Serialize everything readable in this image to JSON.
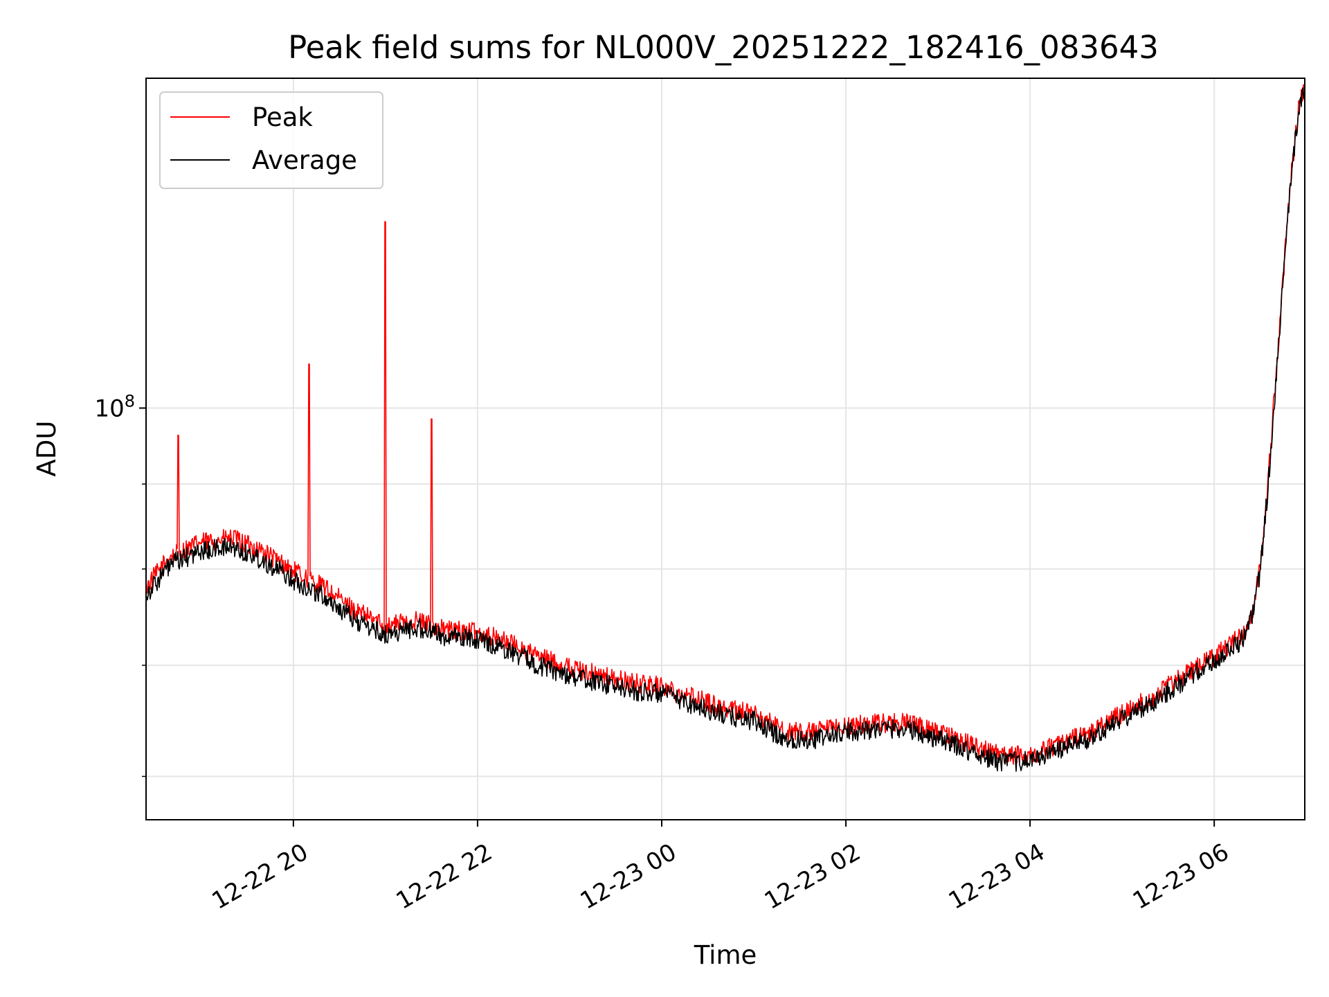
{
  "chart_data": {
    "type": "line",
    "title": "Peak field sums for NL000V_20251222_182416_083643",
    "xlabel": "Time",
    "ylabel": "ADU",
    "yscale": "log",
    "grid": true,
    "legend_position": "upper-left",
    "x_range": [
      "2025-12-22 18:24",
      "2025-12-23 06:59"
    ],
    "ylim": [
      56500000,
      158000000
    ],
    "x_ticks": [
      "12-22 20",
      "12-22 22",
      "12-23 00",
      "12-23 02",
      "12-23 04",
      "12-23 06"
    ],
    "y_tick_label": "10^8",
    "y_minor_ticks": [
      60000000,
      70000000,
      80000000,
      90000000
    ],
    "colors": {
      "peak": "#ff0000",
      "average": "#000000"
    },
    "series": [
      {
        "name": "Peak",
        "color": "#ff0000",
        "points": [
          [
            "2025-12-22 18:24",
            78000000.0
          ],
          [
            "2025-12-22 18:40",
            81500000.0
          ],
          [
            "2025-12-22 19:00",
            83000000.0
          ],
          [
            "2025-12-22 19:20",
            83500000.0
          ],
          [
            "2025-12-22 19:40",
            82000000.0
          ],
          [
            "2025-12-22 20:00",
            79800000.0
          ],
          [
            "2025-12-22 20:20",
            78000000.0
          ],
          [
            "2025-12-22 20:40",
            75500000.0
          ],
          [
            "2025-12-22 21:00",
            74000000.0
          ],
          [
            "2025-12-22 21:20",
            74500000.0
          ],
          [
            "2025-12-22 21:40",
            73500000.0
          ],
          [
            "2025-12-22 22:00",
            73300000.0
          ],
          [
            "2025-12-22 22:20",
            72300000.0
          ],
          [
            "2025-12-22 22:40",
            70800000.0
          ],
          [
            "2025-12-22 23:00",
            69800000.0
          ],
          [
            "2025-12-22 23:20",
            69000000.0
          ],
          [
            "2025-12-22 23:40",
            68300000.0
          ],
          [
            "2025-12-23 00:00",
            68000000.0
          ],
          [
            "2025-12-23 00:20",
            67000000.0
          ],
          [
            "2025-12-23 00:40",
            66000000.0
          ],
          [
            "2025-12-23 01:00",
            65500000.0
          ],
          [
            "2025-12-23 01:20",
            63800000.0
          ],
          [
            "2025-12-23 01:40",
            63800000.0
          ],
          [
            "2025-12-23 02:00",
            64300000.0
          ],
          [
            "2025-12-23 02:20",
            64600000.0
          ],
          [
            "2025-12-23 02:40",
            64600000.0
          ],
          [
            "2025-12-23 03:00",
            63800000.0
          ],
          [
            "2025-12-23 03:20",
            62800000.0
          ],
          [
            "2025-12-23 03:40",
            61800000.0
          ],
          [
            "2025-12-23 04:00",
            61800000.0
          ],
          [
            "2025-12-23 04:20",
            62800000.0
          ],
          [
            "2025-12-23 04:40",
            63800000.0
          ],
          [
            "2025-12-23 05:00",
            65500000.0
          ],
          [
            "2025-12-23 05:20",
            67000000.0
          ],
          [
            "2025-12-23 05:40",
            69000000.0
          ],
          [
            "2025-12-23 06:00",
            70800000.0
          ],
          [
            "2025-12-23 06:20",
            73300000.0
          ],
          [
            "2025-12-23 06:25",
            75500000.0
          ],
          [
            "2025-12-23 06:30",
            80300000.0
          ],
          [
            "2025-12-23 06:35",
            90000000.0
          ],
          [
            "2025-12-23 06:40",
            104000000.0
          ],
          [
            "2025-12-23 06:45",
            120000000.0
          ],
          [
            "2025-12-23 06:50",
            138000000.0
          ],
          [
            "2025-12-23 06:55",
            152000000.0
          ],
          [
            "2025-12-23 06:59",
            157000000.0
          ]
        ],
        "spikes": [
          [
            "2025-12-22 18:45",
            96300000.0
          ],
          [
            "2025-12-22 20:10",
            106300000.0
          ],
          [
            "2025-12-22 21:00",
            129500000.0
          ],
          [
            "2025-12-22 21:30",
            98500000.0
          ]
        ]
      },
      {
        "name": "Average",
        "color": "#000000",
        "points": [
          [
            "2025-12-22 18:24",
            77200000.0
          ],
          [
            "2025-12-22 18:40",
            80500000.0
          ],
          [
            "2025-12-22 19:00",
            82000000.0
          ],
          [
            "2025-12-22 19:20",
            82500000.0
          ],
          [
            "2025-12-22 19:40",
            81000000.0
          ],
          [
            "2025-12-22 20:00",
            78800000.0
          ],
          [
            "2025-12-22 20:20",
            77000000.0
          ],
          [
            "2025-12-22 20:40",
            74500000.0
          ],
          [
            "2025-12-22 21:00",
            73000000.0
          ],
          [
            "2025-12-22 21:20",
            73800000.0
          ],
          [
            "2025-12-22 21:40",
            72800000.0
          ],
          [
            "2025-12-22 22:00",
            72600000.0
          ],
          [
            "2025-12-22 22:20",
            71500000.0
          ],
          [
            "2025-12-22 22:40",
            70000000.0
          ],
          [
            "2025-12-22 23:00",
            69000000.0
          ],
          [
            "2025-12-22 23:20",
            68300000.0
          ],
          [
            "2025-12-22 23:40",
            67600000.0
          ],
          [
            "2025-12-23 00:00",
            67300000.0
          ],
          [
            "2025-12-23 00:20",
            66300000.0
          ],
          [
            "2025-12-23 00:40",
            65300000.0
          ],
          [
            "2025-12-23 01:00",
            64800000.0
          ],
          [
            "2025-12-23 01:20",
            63200000.0
          ],
          [
            "2025-12-23 01:40",
            63200000.0
          ],
          [
            "2025-12-23 02:00",
            63800000.0
          ],
          [
            "2025-12-23 02:20",
            64100000.0
          ],
          [
            "2025-12-23 02:40",
            64100000.0
          ],
          [
            "2025-12-23 03:00",
            63200000.0
          ],
          [
            "2025-12-23 03:20",
            62200000.0
          ],
          [
            "2025-12-23 03:40",
            61200000.0
          ],
          [
            "2025-12-23 04:00",
            61300000.0
          ],
          [
            "2025-12-23 04:20",
            62300000.0
          ],
          [
            "2025-12-23 04:40",
            63300000.0
          ],
          [
            "2025-12-23 05:00",
            65000000.0
          ],
          [
            "2025-12-23 05:20",
            66500000.0
          ],
          [
            "2025-12-23 05:40",
            68500000.0
          ],
          [
            "2025-12-23 06:00",
            70300000.0
          ],
          [
            "2025-12-23 06:20",
            72800000.0
          ],
          [
            "2025-12-23 06:25",
            75000000.0
          ],
          [
            "2025-12-23 06:30",
            79800000.0
          ],
          [
            "2025-12-23 06:35",
            89500000.0
          ],
          [
            "2025-12-23 06:40",
            103500000.0
          ],
          [
            "2025-12-23 06:45",
            119500000.0
          ],
          [
            "2025-12-23 06:50",
            137500000.0
          ],
          [
            "2025-12-23 06:55",
            151000000.0
          ],
          [
            "2025-12-23 06:59",
            156000000.0
          ]
        ]
      }
    ]
  }
}
